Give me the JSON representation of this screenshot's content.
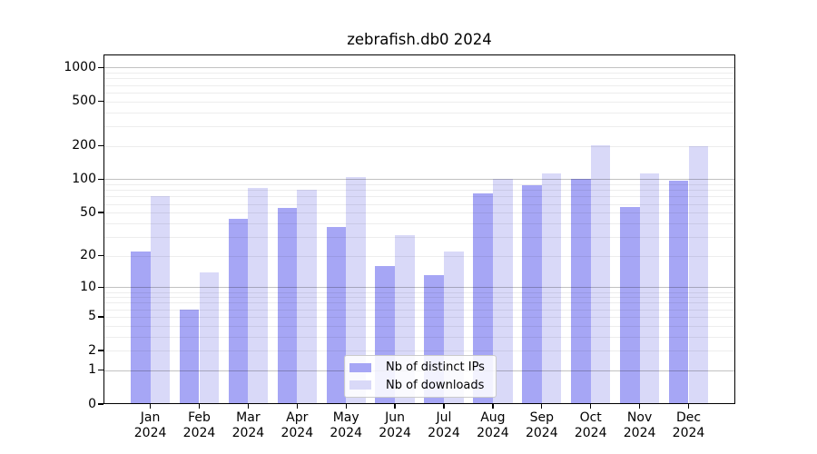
{
  "chart_data": {
    "type": "bar",
    "title": "zebrafish.db0 2024",
    "categories": [
      "Jan",
      "Feb",
      "Mar",
      "Apr",
      "May",
      "Jun",
      "Jul",
      "Aug",
      "Sep",
      "Oct",
      "Nov",
      "Dec"
    ],
    "x_year_label": "2024",
    "series": [
      {
        "name": "Nb of distinct IPs",
        "color": "#a6a6f5",
        "values": [
          22,
          6,
          44,
          55,
          37,
          16,
          13,
          74,
          88,
          101,
          56,
          98
        ]
      },
      {
        "name": "Nb of downloads",
        "color": "#d9d9f8",
        "values": [
          71,
          14,
          83,
          81,
          105,
          31,
          22,
          101,
          113,
          204,
          114,
          198
        ]
      }
    ],
    "yscale": "log10(value+1)",
    "y_ticks": [
      0,
      1,
      2,
      5,
      10,
      20,
      50,
      100,
      200,
      500,
      1000
    ],
    "ylim": [
      0,
      1300
    ],
    "grid": {
      "major_at": [
        1,
        10,
        100,
        1000
      ],
      "major_color": "rgba(0,0,0,0.24)",
      "minor_color": "rgba(0,0,0,0.07)"
    },
    "legend_position": "bottom-center",
    "axis_color": "#000000",
    "background": "#ffffff"
  }
}
